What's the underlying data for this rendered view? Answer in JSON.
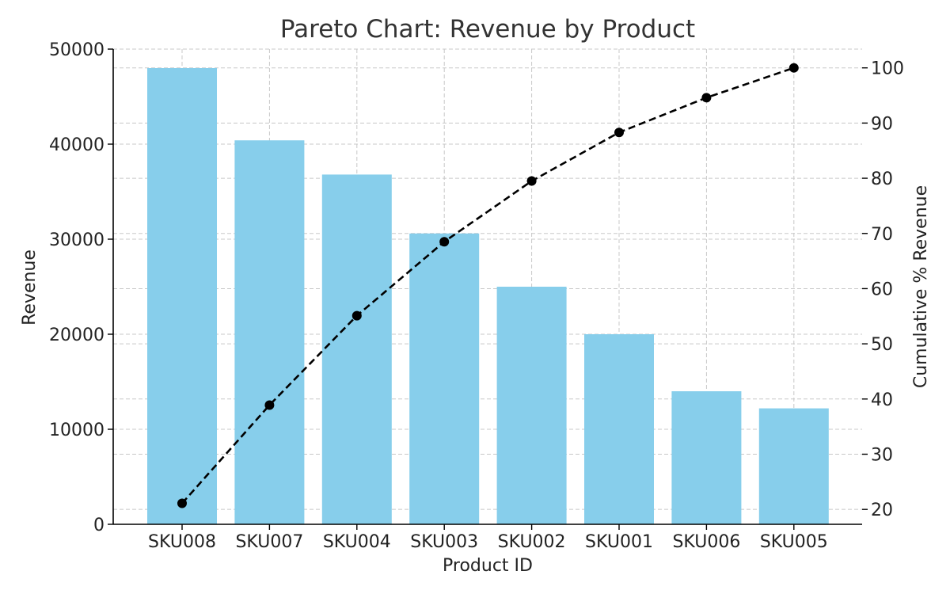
{
  "chart_data": {
    "type": "bar",
    "title": "Pareto Chart: Revenue by Product",
    "xlabel": "Product ID",
    "ylabel": "Revenue",
    "y2label": "Cumulative % Revenue",
    "categories": [
      "SKU008",
      "SKU007",
      "SKU004",
      "SKU003",
      "SKU002",
      "SKU001",
      "SKU006",
      "SKU005"
    ],
    "series": [
      {
        "name": "Revenue",
        "type": "bar",
        "axis": "left",
        "values": [
          48000,
          40400,
          36800,
          30600,
          25000,
          20000,
          14000,
          12200
        ]
      },
      {
        "name": "Cumulative % Revenue",
        "type": "line",
        "axis": "right",
        "values": [
          21.1,
          38.9,
          55.1,
          68.5,
          79.5,
          88.3,
          94.6,
          100.0
        ]
      }
    ],
    "ylim": [
      0,
      50000
    ],
    "y2lim": [
      17.3,
      103.4
    ],
    "yticks": [
      0,
      10000,
      20000,
      30000,
      40000,
      50000
    ],
    "y2ticks": [
      20,
      30,
      40,
      50,
      60,
      70,
      80,
      90,
      100
    ],
    "grid": true,
    "legend": "none",
    "colors": {
      "bar": "#87CEEB",
      "line": "#000000",
      "grid": "#c8c8c8",
      "axis": "#000000",
      "title": "#333333"
    }
  }
}
